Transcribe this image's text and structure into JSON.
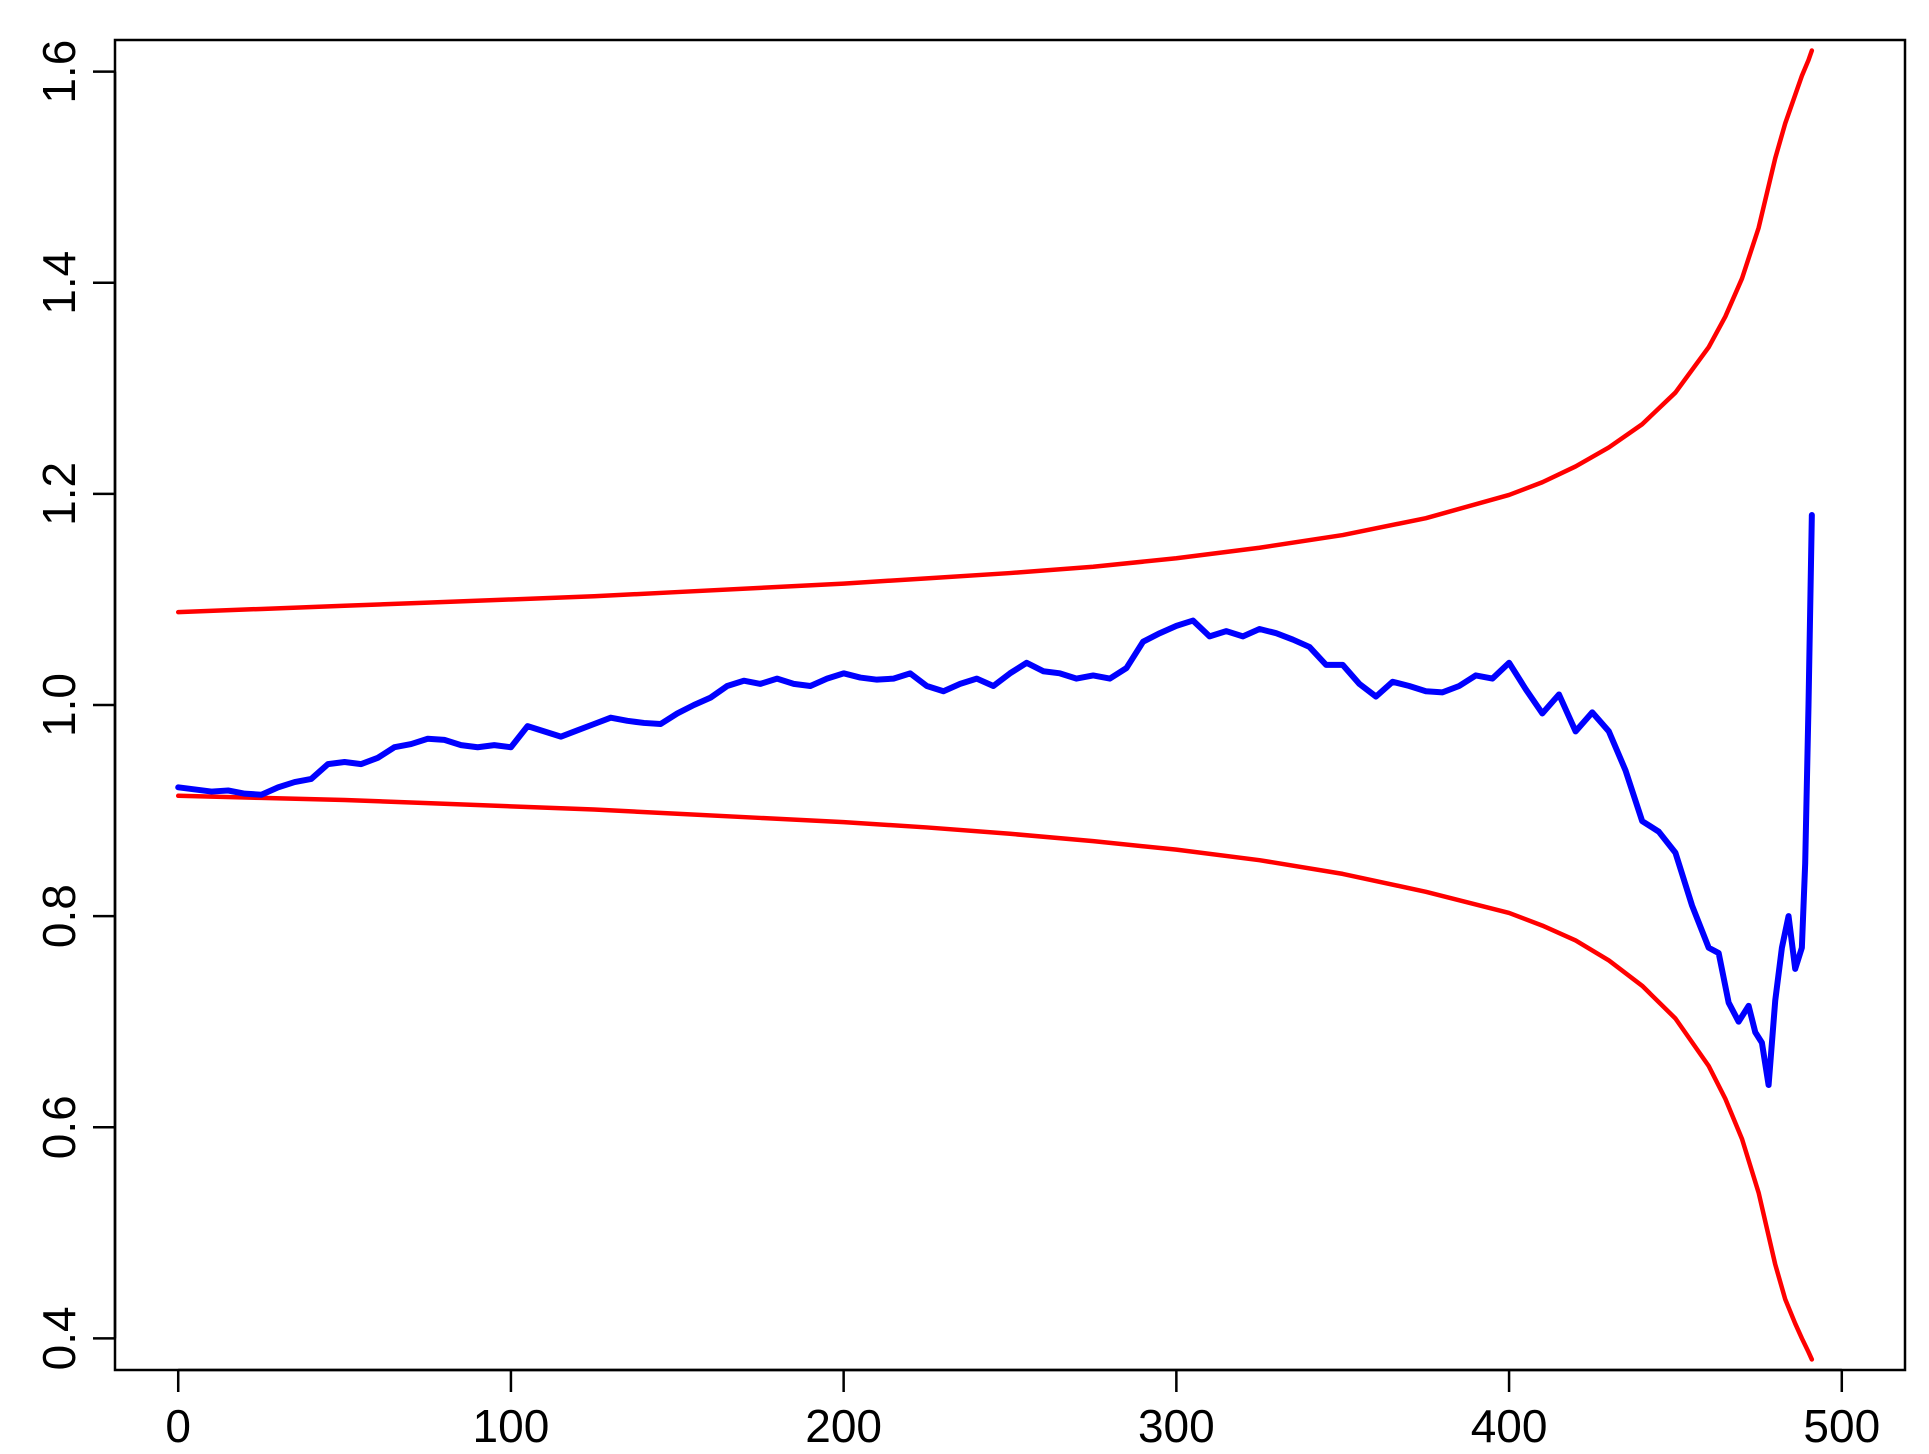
{
  "chart_data": {
    "type": "line",
    "title": "",
    "xlabel": "",
    "ylabel": "",
    "xlim": [
      -19,
      519
    ],
    "ylim": [
      0.37,
      1.63
    ],
    "x_ticks": [
      {
        "value": 0,
        "label": "0"
      },
      {
        "value": 100,
        "label": "100"
      },
      {
        "value": 200,
        "label": "200"
      },
      {
        "value": 300,
        "label": "300"
      },
      {
        "value": 400,
        "label": "400"
      },
      {
        "value": 500,
        "label": "500"
      }
    ],
    "y_ticks": [
      {
        "value": 0.4,
        "label": "0.4"
      },
      {
        "value": 0.6,
        "label": "0.6"
      },
      {
        "value": 0.8,
        "label": "0.8"
      },
      {
        "value": 1.0,
        "label": "1.0"
      },
      {
        "value": 1.2,
        "label": "1.2"
      },
      {
        "value": 1.4,
        "label": "1.4"
      },
      {
        "value": 1.6,
        "label": "1.6"
      }
    ],
    "grid": false,
    "legend": "none",
    "series": [
      {
        "color": "#ff0000",
        "x": [
          0,
          25,
          50,
          75,
          100,
          125,
          150,
          175,
          200,
          225,
          250,
          275,
          300,
          325,
          350,
          375,
          400,
          410,
          420,
          430,
          440,
          450,
          460,
          465,
          470,
          475,
          480,
          483,
          486,
          488,
          490,
          491
        ],
        "y": [
          1.088,
          1.091,
          1.094,
          1.097,
          1.1,
          1.103,
          1.107,
          1.111,
          1.115,
          1.12,
          1.125,
          1.131,
          1.139,
          1.149,
          1.161,
          1.177,
          1.199,
          1.211,
          1.226,
          1.244,
          1.266,
          1.296,
          1.339,
          1.368,
          1.404,
          1.452,
          1.518,
          1.551,
          1.578,
          1.596,
          1.611,
          1.62
        ]
      },
      {
        "color": "#ff0000",
        "x": [
          0,
          25,
          50,
          75,
          100,
          125,
          150,
          175,
          200,
          225,
          250,
          275,
          300,
          325,
          350,
          375,
          400,
          410,
          420,
          430,
          440,
          450,
          460,
          465,
          470,
          475,
          480,
          483,
          486,
          488,
          490,
          491
        ],
        "y": [
          0.914,
          0.912,
          0.91,
          0.907,
          0.904,
          0.901,
          0.897,
          0.893,
          0.889,
          0.884,
          0.878,
          0.871,
          0.863,
          0.853,
          0.84,
          0.823,
          0.803,
          0.791,
          0.777,
          0.758,
          0.734,
          0.703,
          0.658,
          0.627,
          0.589,
          0.538,
          0.47,
          0.437,
          0.414,
          0.4,
          0.387,
          0.38
        ]
      },
      {
        "color": "#0000ff",
        "x": [
          0,
          5,
          10,
          15,
          20,
          25,
          30,
          35,
          40,
          45,
          50,
          55,
          60,
          65,
          70,
          75,
          80,
          85,
          90,
          95,
          100,
          105,
          110,
          115,
          120,
          125,
          130,
          135,
          140,
          145,
          150,
          155,
          160,
          165,
          170,
          175,
          180,
          185,
          190,
          195,
          200,
          205,
          210,
          215,
          220,
          225,
          230,
          235,
          240,
          245,
          250,
          255,
          260,
          265,
          270,
          275,
          280,
          285,
          290,
          295,
          300,
          305,
          310,
          315,
          320,
          325,
          330,
          335,
          340,
          345,
          350,
          355,
          360,
          365,
          370,
          375,
          380,
          385,
          390,
          395,
          400,
          405,
          410,
          415,
          420,
          425,
          430,
          435,
          440,
          445,
          450,
          455,
          460,
          463,
          466,
          469,
          472,
          474,
          476,
          478,
          480,
          482,
          484,
          486,
          488,
          489,
          490,
          491
        ],
        "y": [
          0.922,
          0.92,
          0.918,
          0.919,
          0.916,
          0.915,
          0.922,
          0.927,
          0.93,
          0.944,
          0.946,
          0.944,
          0.95,
          0.96,
          0.963,
          0.968,
          0.967,
          0.962,
          0.96,
          0.962,
          0.96,
          0.98,
          0.975,
          0.97,
          0.976,
          0.982,
          0.988,
          0.985,
          0.983,
          0.982,
          0.992,
          1.0,
          1.007,
          1.018,
          1.023,
          1.02,
          1.025,
          1.02,
          1.018,
          1.025,
          1.03,
          1.026,
          1.024,
          1.025,
          1.03,
          1.018,
          1.013,
          1.02,
          1.025,
          1.018,
          1.03,
          1.04,
          1.032,
          1.03,
          1.025,
          1.028,
          1.025,
          1.035,
          1.06,
          1.068,
          1.075,
          1.08,
          1.065,
          1.07,
          1.065,
          1.072,
          1.068,
          1.062,
          1.055,
          1.038,
          1.038,
          1.02,
          1.008,
          1.022,
          1.018,
          1.013,
          1.012,
          1.018,
          1.028,
          1.025,
          1.04,
          1.015,
          0.992,
          1.01,
          0.975,
          0.993,
          0.975,
          0.938,
          0.89,
          0.88,
          0.86,
          0.81,
          0.77,
          0.765,
          0.718,
          0.7,
          0.715,
          0.69,
          0.68,
          0.64,
          0.72,
          0.77,
          0.8,
          0.75,
          0.77,
          0.85,
          1.0,
          1.18
        ]
      }
    ]
  }
}
